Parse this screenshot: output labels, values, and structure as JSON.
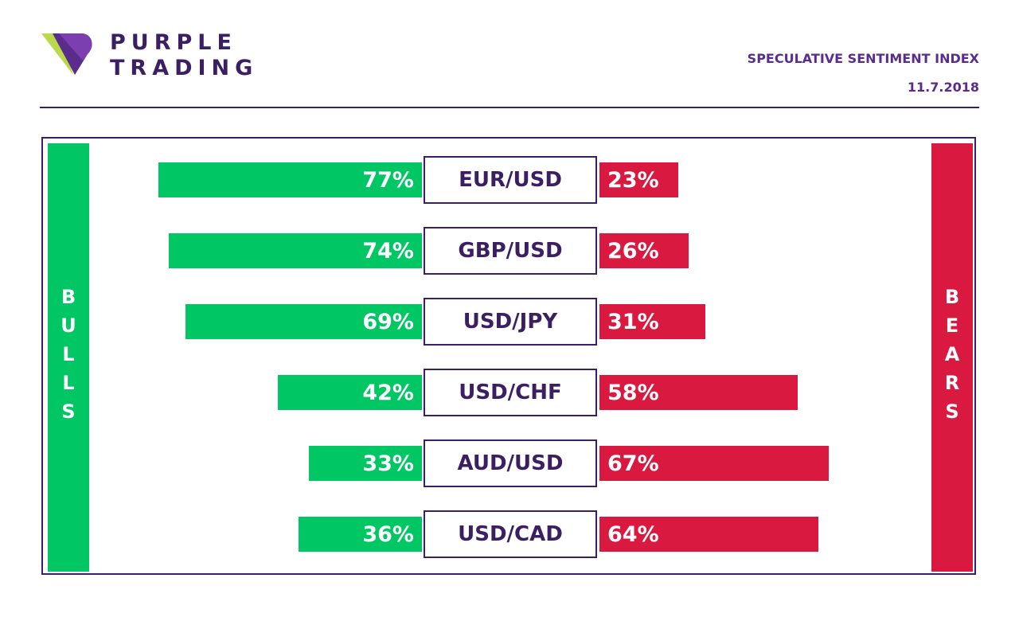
{
  "brand": {
    "line1": "PURPLE",
    "line2": "TRADING"
  },
  "header": {
    "title": "SPECULATIVE SENTIMENT INDEX",
    "date": "11.7.2018"
  },
  "side_labels": {
    "left": "BULLS",
    "right": "BEARS"
  },
  "colors": {
    "bull": "#00c764",
    "bear": "#d9193f",
    "brand": "#3b1f63"
  },
  "chart_data": {
    "type": "bar",
    "categories": [
      "EUR/USD",
      "GBP/USD",
      "USD/JPY",
      "USD/CHF",
      "AUD/USD",
      "USD/CAD"
    ],
    "series": [
      {
        "name": "BULLS",
        "values": [
          77,
          74,
          69,
          42,
          33,
          36
        ],
        "labels": [
          "77%",
          "74%",
          "69%",
          "42%",
          "33%",
          "36%"
        ]
      },
      {
        "name": "BEARS",
        "values": [
          23,
          26,
          31,
          58,
          67,
          64
        ],
        "labels": [
          "23%",
          "26%",
          "31%",
          "58%",
          "67%",
          "64%"
        ]
      }
    ]
  }
}
